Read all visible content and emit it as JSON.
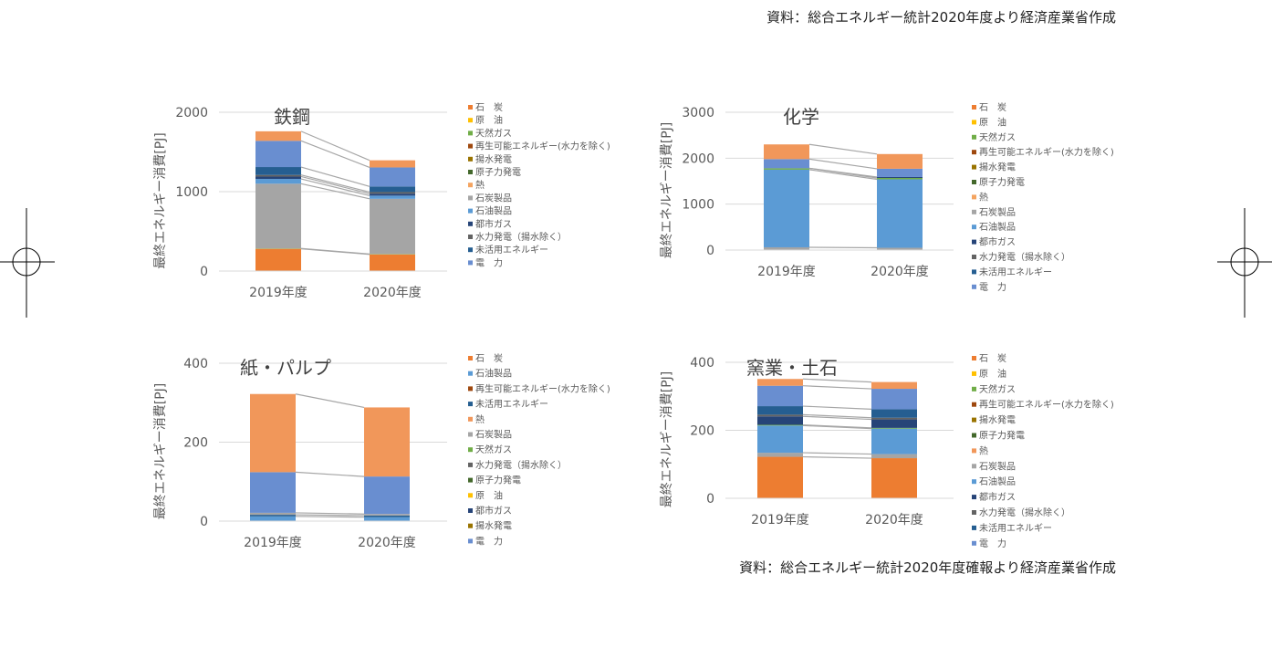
{
  "sources": {
    "top": "資料：総合エネルギー統計2020年度より経済産業省作成",
    "bottom": "資料：総合エネルギー統計2020年度確報より経済産業省作成"
  },
  "bottom_text": "",
  "chart_data": [
    {
      "id": "steel",
      "type": "bar",
      "stacked": true,
      "title": "鉄鋼",
      "ylabel": "最終エネルギー消費[PJ]",
      "xlabel": "",
      "categories": [
        "2019年度",
        "2020年度"
      ],
      "ylim": [
        0,
        2000
      ],
      "yticks": [
        0,
        1000,
        2000
      ],
      "gridlines": true,
      "connector_lines": true,
      "legend_position": "right",
      "series": [
        {
          "name": "石　炭",
          "color": "#ED7D31",
          "values": [
            280,
            210
          ]
        },
        {
          "name": "原　油",
          "color": "#FFC000",
          "values": [
            0,
            0
          ]
        },
        {
          "name": "天然ガス",
          "color": "#70AD47",
          "values": [
            5,
            5
          ]
        },
        {
          "name": "再生可能エネルギー(水力を除く)",
          "color": "#9E480E",
          "values": [
            0,
            0
          ]
        },
        {
          "name": "揚水発電",
          "color": "#997300",
          "values": [
            0,
            0
          ]
        },
        {
          "name": "原子力発電",
          "color": "#43682B",
          "values": [
            0,
            0
          ]
        },
        {
          "name": "熱",
          "color": "#F4A460",
          "values": [
            0,
            0
          ]
        },
        {
          "name": "石炭製品",
          "color": "#A5A5A5",
          "values": [
            815,
            695
          ]
        },
        {
          "name": "石油製品",
          "color": "#5B9BD5",
          "values": [
            60,
            40
          ]
        },
        {
          "name": "都市ガス",
          "color": "#264478",
          "values": [
            30,
            25
          ]
        },
        {
          "name": "水力発電（揚水除く）",
          "color": "#636363",
          "values": [
            20,
            20
          ]
        },
        {
          "name": "未活用エネルギー",
          "color": "#255E91",
          "values": [
            100,
            70
          ]
        },
        {
          "name": "電　力",
          "color": "#698ED0",
          "values": [
            330,
            240
          ]
        },
        {
          "name": "",
          "color": "#F1975A",
          "values": [
            120,
            90
          ]
        }
      ]
    },
    {
      "id": "chemical",
      "type": "bar",
      "stacked": true,
      "title": "化学",
      "ylabel": "最終エネルギー消費[PJ]",
      "xlabel": "",
      "categories": [
        "2019年度",
        "2020年度"
      ],
      "ylim": [
        0,
        3000
      ],
      "yticks": [
        0,
        1000,
        2000,
        3000
      ],
      "gridlines": true,
      "connector_lines": true,
      "legend_position": "right",
      "series": [
        {
          "name": "石　炭",
          "color": "#ED7D31",
          "values": [
            0,
            0
          ]
        },
        {
          "name": "原　油",
          "color": "#FFC000",
          "values": [
            0,
            0
          ]
        },
        {
          "name": "天然ガス",
          "color": "#70AD47",
          "values": [
            0,
            0
          ]
        },
        {
          "name": "再生可能エネルギー(水力を除く)",
          "color": "#9E480E",
          "values": [
            0,
            0
          ]
        },
        {
          "name": "揚水発電",
          "color": "#997300",
          "values": [
            0,
            0
          ]
        },
        {
          "name": "原子力発電",
          "color": "#43682B",
          "values": [
            0,
            0
          ]
        },
        {
          "name": "熱",
          "color": "#F4A460",
          "values": [
            0,
            0
          ]
        },
        {
          "name": "石炭製品",
          "color": "#A5A5A5",
          "values": [
            60,
            50
          ]
        },
        {
          "name": "石油製品",
          "color": "#5B9BD5",
          "values": [
            1690,
            1490
          ]
        },
        {
          "name": "都市ガス",
          "color": "#264478",
          "values": [
            0,
            0
          ]
        },
        {
          "name": "水力発電（揚水除く）",
          "color": "#636363",
          "values": [
            0,
            0
          ]
        },
        {
          "name": "未活用エネルギー",
          "color": "#255E91",
          "values": [
            0,
            0
          ]
        },
        {
          "name": "電　力",
          "color": "#698ED0",
          "values": [
            0,
            0
          ]
        },
        {
          "name": "",
          "color": "#70AD47",
          "values": [
            30,
            30
          ]
        },
        {
          "name": "",
          "color": "#264478",
          "values": [
            0,
            20
          ]
        },
        {
          "name": "",
          "color": "#698ED0",
          "values": [
            200,
            180
          ]
        },
        {
          "name": "",
          "color": "#F1975A",
          "values": [
            320,
            320
          ]
        }
      ]
    },
    {
      "id": "paper",
      "type": "bar",
      "stacked": true,
      "title": "紙・パルプ",
      "ylabel": "最終エネルギー消費[PJ]",
      "xlabel": "",
      "categories": [
        "2019年度",
        "2020年度"
      ],
      "ylim": [
        0,
        400
      ],
      "yticks": [
        0,
        200,
        400
      ],
      "gridlines": true,
      "connector_lines": true,
      "legend_position": "right",
      "series": [
        {
          "name": "石　炭",
          "color": "#ED7D31",
          "values": [
            0,
            0
          ]
        },
        {
          "name": "石油製品",
          "color": "#5B9BD5",
          "values": [
            12,
            10
          ]
        },
        {
          "name": "再生可能エネルギー(水力を除く)",
          "color": "#9E480E",
          "values": [
            0,
            0
          ]
        },
        {
          "name": "未活用エネルギー",
          "color": "#255E91",
          "values": [
            4,
            4
          ]
        },
        {
          "name": "熱",
          "color": "#F1975A",
          "values": [
            198,
            175
          ]
        },
        {
          "name": "石炭製品",
          "color": "#A5A5A5",
          "values": [
            5,
            4
          ]
        },
        {
          "name": "天然ガス",
          "color": "#70AD47",
          "values": [
            0,
            0
          ]
        },
        {
          "name": "水力発電（揚水除く）",
          "color": "#636363",
          "values": [
            0,
            0
          ]
        },
        {
          "name": "原子力発電",
          "color": "#43682B",
          "values": [
            0,
            0
          ]
        },
        {
          "name": "原　油",
          "color": "#FFC000",
          "values": [
            0,
            0
          ]
        },
        {
          "name": "都市ガス",
          "color": "#264478",
          "values": [
            0,
            0
          ]
        },
        {
          "name": "揚水発電",
          "color": "#997300",
          "values": [
            0,
            0
          ]
        },
        {
          "name": "電　力",
          "color": "#698ED0",
          "values": [
            103,
            95
          ]
        }
      ],
      "stack_order": [
        1,
        3,
        5,
        12,
        4
      ]
    },
    {
      "id": "ceramics",
      "type": "bar",
      "stacked": true,
      "title": "窯業・土石",
      "ylabel": "最終エネルギー消費[PJ]",
      "xlabel": "",
      "categories": [
        "2019年度",
        "2020年度"
      ],
      "ylim": [
        0,
        400
      ],
      "yticks": [
        0,
        200,
        400
      ],
      "gridlines": true,
      "connector_lines": true,
      "legend_position": "right",
      "series": [
        {
          "name": "石　炭",
          "color": "#ED7D31",
          "values": [
            122,
            118
          ]
        },
        {
          "name": "原　油",
          "color": "#FFC000",
          "values": [
            0,
            0
          ]
        },
        {
          "name": "天然ガス",
          "color": "#70AD47",
          "values": [
            2,
            2
          ]
        },
        {
          "name": "再生可能エネルギー(水力を除く)",
          "color": "#9E480E",
          "values": [
            0,
            0
          ]
        },
        {
          "name": "揚水発電",
          "color": "#997300",
          "values": [
            0,
            0
          ]
        },
        {
          "name": "原子力発電",
          "color": "#43682B",
          "values": [
            0,
            0
          ]
        },
        {
          "name": "熱",
          "color": "#F1975A",
          "values": [
            20,
            20
          ]
        },
        {
          "name": "石炭製品",
          "color": "#A5A5A5",
          "values": [
            12,
            12
          ]
        },
        {
          "name": "石油製品",
          "color": "#5B9BD5",
          "values": [
            80,
            75
          ]
        },
        {
          "name": "都市ガス",
          "color": "#264478",
          "values": [
            25,
            25
          ]
        },
        {
          "name": "水力発電（揚水除く）",
          "color": "#636363",
          "values": [
            5,
            5
          ]
        },
        {
          "name": "未活用エネルギー",
          "color": "#255E91",
          "values": [
            25,
            25
          ]
        },
        {
          "name": "電　力",
          "color": "#698ED0",
          "values": [
            60,
            60
          ]
        }
      ],
      "stack_order": [
        0,
        7,
        8,
        2,
        9,
        10,
        11,
        12,
        6
      ]
    }
  ]
}
